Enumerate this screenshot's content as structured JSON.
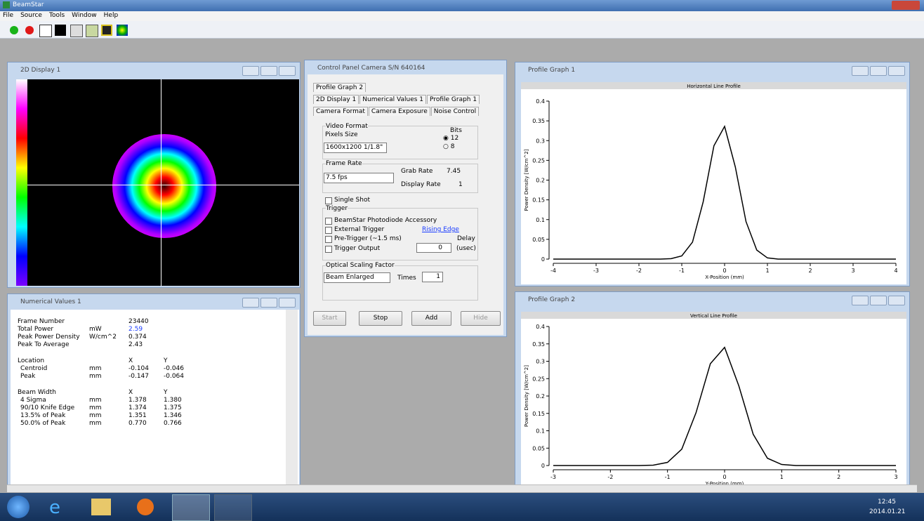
{
  "app": {
    "title": "BeamStar",
    "menu": [
      "File",
      "Source",
      "Tools",
      "Window",
      "Help"
    ]
  },
  "display_2d": {
    "title": "2D Display 1"
  },
  "control_panel": {
    "title": "Control Panel Camera S/N 640164",
    "tabs": [
      [
        "Profile Graph 2"
      ],
      [
        "2D Display 1",
        "Numerical Values 1",
        "Profile Graph 1"
      ],
      [
        "Camera Format",
        "Camera Exposure",
        "Noise Control"
      ]
    ],
    "video_format": {
      "label": "Video Format",
      "pixels_label": "Pixels",
      "size_label": "Size",
      "bits_label": "Bits",
      "pixels": "1600x1200",
      "size": "1/1.8\"",
      "bits_options": [
        "12",
        "8"
      ]
    },
    "frame_rate": {
      "label": "Frame Rate",
      "selected": "7.5 fps",
      "grab_rate_label": "Grab Rate",
      "grab_rate": "7.45",
      "display_rate_label": "Display Rate",
      "display_rate": "1"
    },
    "single_shot": "Single Shot",
    "trigger": {
      "label": "Trigger",
      "photodiode": "BeamStar Photodiode Accessory",
      "external": "External Trigger",
      "edge": "Rising Edge",
      "pre_trigger": "Pre-Trigger (~1.5 ms)",
      "delay_label": "Delay",
      "output": "Trigger Output",
      "delay": "0",
      "delay_unit": "(usec)"
    },
    "optical_scaling": {
      "label": "Optical Scaling Factor",
      "mode": "Beam Enlarged",
      "times_label": "Times",
      "times": "1"
    },
    "buttons": [
      "Start",
      "Stop",
      "Add",
      "Hide"
    ]
  },
  "numerical": {
    "title": "Numerical Values 1",
    "summary": [
      {
        "label": "Frame Number",
        "value": "23440"
      },
      {
        "label": "Total Power",
        "unit": "mW",
        "value": "2.59"
      },
      {
        "label": "Peak Power Density",
        "unit": "W/cm^2",
        "value": "0.374"
      },
      {
        "label": "Peak To Average",
        "value": "2.43"
      }
    ],
    "sections": [
      {
        "label": "Location",
        "columns": [
          "X",
          "Y"
        ],
        "rows": [
          {
            "label": "Centroid",
            "unit": "mm",
            "x": "-0.104",
            "y": "-0.046"
          },
          {
            "label": "Peak",
            "unit": "mm",
            "x": "-0.147",
            "y": "-0.064"
          }
        ]
      },
      {
        "label": "Beam Width",
        "columns": [
          "X",
          "Y"
        ],
        "rows": [
          {
            "label": "4 Sigma",
            "unit": "mm",
            "x": "1.378",
            "y": "1.380"
          },
          {
            "label": "90/10 Knife Edge",
            "unit": "mm",
            "x": "1.374",
            "y": "1.375"
          },
          {
            "label": "13.5% of Peak",
            "unit": "mm",
            "x": "1.351",
            "y": "1.346"
          },
          {
            "label": "50.0% of Peak",
            "unit": "mm",
            "x": "0.770",
            "y": "0.766"
          }
        ]
      }
    ]
  },
  "chart_data": [
    {
      "type": "line",
      "window_title": "Profile Graph 1",
      "title": "Horizontal Line Profile",
      "x_label": "X-Position (mm)",
      "y_label": "Power Density [W/cm^2]",
      "color": "#000000",
      "xlim": [
        -4,
        4
      ],
      "ylim": [
        0,
        0.4
      ],
      "xticks": [
        -4,
        -3,
        -2,
        -1,
        0,
        1,
        2,
        3,
        4
      ],
      "yticks": [
        0,
        0.05,
        0.1,
        0.15,
        0.2,
        0.25,
        0.3,
        0.35,
        0.4
      ],
      "x": [
        -4,
        -2,
        -1.5,
        -1.25,
        -1,
        -0.75,
        -0.5,
        -0.25,
        0,
        0.25,
        0.5,
        0.75,
        1,
        1.25,
        1.5,
        2,
        4
      ],
      "values": [
        0,
        0,
        0,
        0.001,
        0.008,
        0.043,
        0.145,
        0.287,
        0.336,
        0.233,
        0.095,
        0.023,
        0.003,
        0,
        0,
        0,
        0
      ]
    },
    {
      "type": "line",
      "window_title": "Profile Graph 2",
      "title": "Vertical Line Profile",
      "x_label": "Y-Position (mm)",
      "y_label": "Power Density [W/cm^2]",
      "color": "#000000",
      "xlim": [
        -3,
        3
      ],
      "ylim": [
        0,
        0.4
      ],
      "xticks": [
        -3,
        -2,
        -1,
        0,
        1,
        2,
        3
      ],
      "yticks": [
        0,
        0.05,
        0.1,
        0.15,
        0.2,
        0.25,
        0.3,
        0.35,
        0.4
      ],
      "x": [
        -3,
        -2,
        -1.5,
        -1.25,
        -1,
        -0.75,
        -0.5,
        -0.25,
        0,
        0.25,
        0.5,
        0.75,
        1,
        1.25,
        1.5,
        2,
        3
      ],
      "values": [
        0,
        0,
        0,
        0.001,
        0.009,
        0.047,
        0.152,
        0.293,
        0.34,
        0.229,
        0.09,
        0.021,
        0.003,
        0,
        0,
        0,
        0
      ]
    }
  ],
  "taskbar": {
    "time": "12:45",
    "date": "2014.01.21"
  }
}
